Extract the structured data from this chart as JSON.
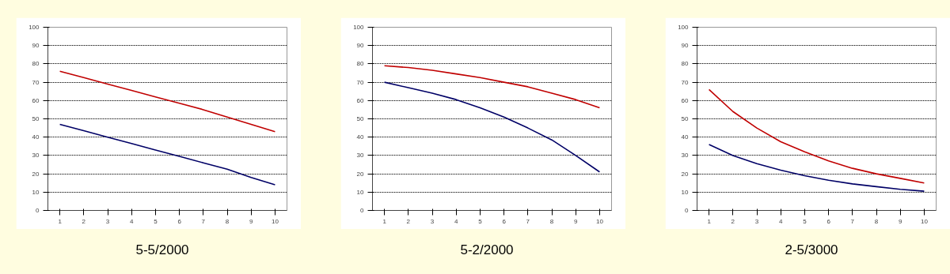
{
  "chart_data": [
    {
      "type": "line",
      "title": "5-5/2000",
      "categories": [
        "1",
        "2",
        "3",
        "4",
        "5",
        "6",
        "7",
        "8",
        "9",
        "10"
      ],
      "ylim": [
        0,
        100
      ],
      "yticks": [
        0,
        10,
        20,
        30,
        40,
        50,
        60,
        70,
        80,
        90,
        100
      ],
      "grid": "y",
      "series": [
        {
          "color": "#c00000",
          "values": [
            76,
            72.5,
            69,
            65.5,
            62,
            58.5,
            55,
            51,
            47,
            43
          ]
        },
        {
          "color": "#000066",
          "values": [
            47,
            43.5,
            40,
            36.5,
            33,
            29.5,
            26,
            22.5,
            18,
            14
          ]
        }
      ]
    },
    {
      "type": "line",
      "title": "5-2/2000",
      "categories": [
        "1",
        "2",
        "3",
        "4",
        "5",
        "6",
        "7",
        "8",
        "9",
        "10"
      ],
      "ylim": [
        0,
        100
      ],
      "yticks": [
        0,
        10,
        20,
        30,
        40,
        50,
        60,
        70,
        80,
        90,
        100
      ],
      "grid": "y",
      "series": [
        {
          "color": "#c00000",
          "values": [
            79,
            78,
            76.5,
            74.5,
            72.5,
            70,
            67.5,
            64,
            60.5,
            56
          ]
        },
        {
          "color": "#000066",
          "values": [
            70,
            67,
            64,
            60.5,
            56,
            51,
            45,
            38.5,
            30,
            21
          ]
        }
      ]
    },
    {
      "type": "line",
      "title": "2-5/3000",
      "categories": [
        "1",
        "2",
        "3",
        "4",
        "5",
        "6",
        "7",
        "8",
        "9",
        "10"
      ],
      "ylim": [
        0,
        100
      ],
      "yticks": [
        0,
        10,
        20,
        30,
        40,
        50,
        60,
        70,
        80,
        90,
        100
      ],
      "grid": "y",
      "series": [
        {
          "color": "#c00000",
          "values": [
            66,
            54,
            45,
            37.5,
            32,
            27,
            23,
            20,
            17.5,
            15
          ]
        },
        {
          "color": "#000066",
          "values": [
            36,
            30,
            25.5,
            22,
            19,
            16.5,
            14.5,
            13,
            11.5,
            10.5
          ]
        }
      ]
    }
  ]
}
